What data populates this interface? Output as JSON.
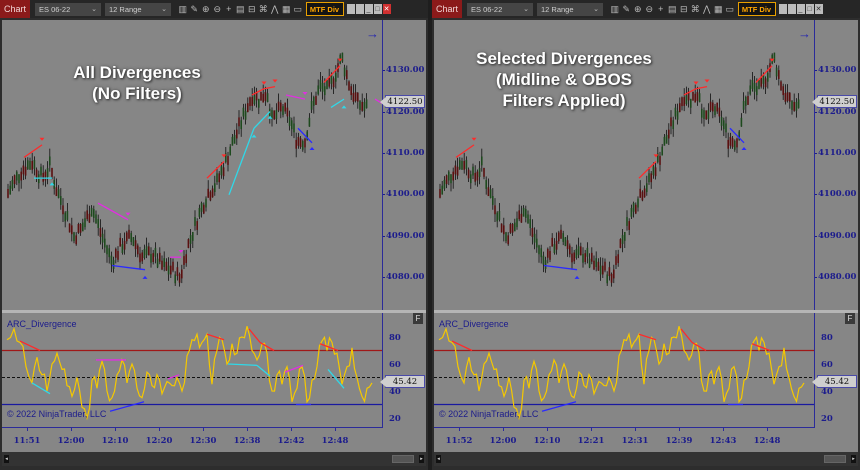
{
  "windows": [
    {
      "id": "left",
      "toolbar": {
        "tab_label": "Chart",
        "instrument": "ES 06-22",
        "period": "12 Range",
        "indicator_button": "MTF Div",
        "icons": [
          "bar-style-icon",
          "pencil-icon",
          "zoom-in-icon",
          "zoom-out-icon",
          "crosshair-icon",
          "properties-icon",
          "templates-icon",
          "data-box-icon",
          "strategy-icon",
          "calculator-icon",
          "window-icon"
        ],
        "window_buttons": [
          "tile-1",
          "tile-2",
          "minimize",
          "maximize",
          "close"
        ]
      },
      "overlay_text": [
        "All Divergences",
        "(No Filters)"
      ],
      "price_axis": {
        "labels": [
          "4130.00",
          "4120.00",
          "4110.00",
          "4100.00",
          "4090.00",
          "4080.00"
        ],
        "current_price": "4122.50"
      },
      "oscillator": {
        "title": "ARC_Divergence",
        "copyright": "© 2022 NinjaTrader, LLC",
        "axis_labels": [
          "80",
          "60",
          "40",
          "20"
        ],
        "current_value": "45.42",
        "f_button": "F"
      },
      "time_axis": [
        "11:51",
        "12:00",
        "12:10",
        "12:20",
        "12:30",
        "12:38",
        "12:42",
        "12:48"
      ]
    },
    {
      "id": "right",
      "toolbar": {
        "tab_label": "Chart",
        "instrument": "ES 06-22",
        "period": "12 Range",
        "indicator_button": "MTF Div",
        "icons": [
          "bar-style-icon",
          "pencil-icon",
          "zoom-in-icon",
          "zoom-out-icon",
          "crosshair-icon",
          "properties-icon",
          "templates-icon",
          "data-box-icon",
          "strategy-icon",
          "calculator-icon",
          "window-icon"
        ],
        "window_buttons": [
          "tile-1",
          "tile-2",
          "minimize",
          "maximize",
          "close"
        ]
      },
      "overlay_text": [
        "Selected Divergences",
        "(Midline & OBOS",
        "Filters Applied)"
      ],
      "price_axis": {
        "labels": [
          "4130.00",
          "4120.00",
          "4110.00",
          "4100.00",
          "4090.00",
          "4080.00"
        ],
        "current_price": "4122.50"
      },
      "oscillator": {
        "title": "ARC_Divergence",
        "copyright": "© 2022 NinjaTrader, LLC",
        "axis_labels": [
          "80",
          "60",
          "40",
          "20"
        ],
        "current_value": "45.42",
        "f_button": "F"
      },
      "time_axis": [
        "11:52",
        "12:00",
        "12:10",
        "12:21",
        "12:31",
        "12:39",
        "12:43",
        "12:48"
      ]
    }
  ],
  "colors": {
    "background": "#868686",
    "axis_text": "#1c1c8c",
    "bear_divergence": "#ff2a2a",
    "bull_divergence": "#2a2aff",
    "hidden_bear": "#e030e0",
    "hidden_bull": "#30d8e8",
    "oscillator_line": "#f5c800",
    "overbought_line": "#a01818",
    "oversold_line": "#1a1aa0",
    "up_bar": "#1e4a1e",
    "down_bar": "#5a1010",
    "mtf_border": "#e8a000"
  },
  "chart_data": [
    {
      "type": "line",
      "title": "All Divergences (No Filters)",
      "price_series": {
        "name": "ES 06-22 12 Range",
        "x_labels": [
          "11:51",
          "12:00",
          "12:10",
          "12:20",
          "12:30",
          "12:38",
          "12:42",
          "12:48"
        ],
        "approx_close": [
          4101,
          4106,
          4086,
          4082,
          4093,
          4125,
          4114,
          4128,
          4122.5
        ],
        "ylim": [
          4075,
          4137
        ]
      },
      "oscillator_series": {
        "name": "ARC_Divergence",
        "ylim": [
          15,
          90
        ],
        "levels": {
          "overbought": 70,
          "midline": 50,
          "oversold": 30
        },
        "last": 45.42
      },
      "divergences": [
        {
          "type": "bearish",
          "color": "red",
          "count": 5
        },
        {
          "type": "bullish",
          "color": "blue",
          "count": 2
        },
        {
          "type": "hidden_bearish",
          "color": "magenta",
          "count": 3
        },
        {
          "type": "hidden_bullish",
          "color": "cyan",
          "count": 4
        }
      ]
    },
    {
      "type": "line",
      "title": "Selected Divergences (Midline & OBOS Filters Applied)",
      "price_series": {
        "name": "ES 06-22 12 Range",
        "x_labels": [
          "11:52",
          "12:00",
          "12:10",
          "12:21",
          "12:31",
          "12:39",
          "12:43",
          "12:48"
        ],
        "approx_close": [
          4101,
          4106,
          4086,
          4082,
          4093,
          4125,
          4114,
          4128,
          4122.5
        ],
        "ylim": [
          4075,
          4137
        ]
      },
      "oscillator_series": {
        "name": "ARC_Divergence",
        "ylim": [
          15,
          90
        ],
        "levels": {
          "overbought": 70,
          "midline": 50,
          "oversold": 30
        },
        "last": 45.42
      },
      "divergences": [
        {
          "type": "bearish",
          "color": "red",
          "count": 5
        },
        {
          "type": "bullish",
          "color": "blue",
          "count": 2
        }
      ]
    }
  ]
}
